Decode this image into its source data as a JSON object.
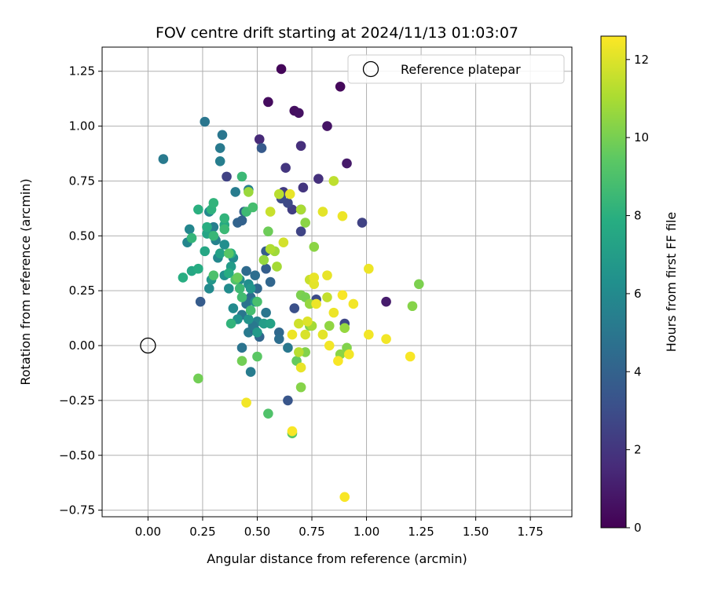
{
  "chart_data": {
    "type": "scatter",
    "title": "FOV centre drift starting at 2024/11/13 01:03:07",
    "xlabel": "Angular distance from reference (arcmin)",
    "ylabel": "Rotation from reference (arcmin)",
    "xlim": [
      -0.21,
      1.94
    ],
    "ylim": [
      -0.78,
      1.36
    ],
    "x_ticks": [
      0.0,
      0.25,
      0.5,
      0.75,
      1.0,
      1.25,
      1.5,
      1.75
    ],
    "x_tick_labels": [
      "0.00",
      "0.25",
      "0.50",
      "0.75",
      "1.00",
      "1.25",
      "1.50",
      "1.75"
    ],
    "y_ticks": [
      -0.75,
      -0.5,
      -0.25,
      0.0,
      0.25,
      0.5,
      0.75,
      1.0,
      1.25
    ],
    "y_tick_labels": [
      "−0.75",
      "−0.50",
      "−0.25",
      "0.00",
      "0.25",
      "0.50",
      "0.75",
      "1.00",
      "1.25"
    ],
    "grid": true,
    "legend": {
      "placement": "upper-right",
      "entries": [
        {
          "label": "Reference platepar",
          "marker": "open-circle",
          "color": "#000000"
        }
      ]
    },
    "reference_point": {
      "x": 0.0,
      "y": 0.0
    },
    "colorbar": {
      "label": "Hours from first FF file",
      "colormap": "viridis",
      "range": [
        0,
        12.6
      ],
      "ticks": [
        0,
        2,
        4,
        6,
        8,
        10,
        12
      ],
      "tick_labels": [
        "0",
        "2",
        "4",
        "6",
        "8",
        "10",
        "12"
      ]
    },
    "points_columns": [
      "x_arcmin",
      "y_arcmin",
      "hours"
    ],
    "points": [
      [
        0.61,
        1.26,
        0.2
      ],
      [
        0.88,
        1.18,
        0.3
      ],
      [
        0.55,
        1.11,
        0.4
      ],
      [
        0.67,
        1.07,
        0.5
      ],
      [
        0.69,
        1.06,
        0.6
      ],
      [
        0.82,
        1.0,
        0.7
      ],
      [
        0.91,
        0.83,
        0.9
      ],
      [
        1.09,
        0.2,
        1.0
      ],
      [
        0.51,
        0.94,
        1.5
      ],
      [
        0.7,
        0.91,
        1.7
      ],
      [
        0.78,
        0.76,
        1.8
      ],
      [
        0.63,
        0.81,
        2.0
      ],
      [
        0.71,
        0.72,
        2.0
      ],
      [
        0.62,
        0.7,
        2.2
      ],
      [
        0.66,
        0.62,
        2.3
      ],
      [
        0.7,
        0.62,
        2.4
      ],
      [
        0.7,
        0.52,
        2.6
      ],
      [
        0.98,
        0.56,
        2.5
      ],
      [
        0.36,
        0.77,
        2.5
      ],
      [
        0.9,
        0.1,
        2.7
      ],
      [
        0.64,
        0.65,
        2.8
      ],
      [
        0.61,
        0.67,
        2.9
      ],
      [
        0.77,
        0.21,
        2.9
      ],
      [
        0.67,
        0.17,
        3.1
      ],
      [
        0.52,
        0.9,
        3.6
      ],
      [
        0.64,
        -0.25,
        3.4
      ],
      [
        0.54,
        0.43,
        3.7
      ],
      [
        0.54,
        0.35,
        3.8
      ],
      [
        0.24,
        0.2,
        3.7
      ],
      [
        0.44,
        0.61,
        3.9
      ],
      [
        0.41,
        0.56,
        4.1
      ],
      [
        0.43,
        0.57,
        4.0
      ],
      [
        0.56,
        0.29,
        4.2
      ],
      [
        0.5,
        0.26,
        4.3
      ],
      [
        0.45,
        0.34,
        4.4
      ],
      [
        0.49,
        0.32,
        4.6
      ],
      [
        0.47,
        0.22,
        4.5
      ],
      [
        0.45,
        0.19,
        4.8
      ],
      [
        0.43,
        0.14,
        5.0
      ],
      [
        0.46,
        0.06,
        5.2
      ],
      [
        0.51,
        0.04,
        4.2
      ],
      [
        0.49,
        0.07,
        4.4
      ],
      [
        0.6,
        0.06,
        4.3
      ],
      [
        0.6,
        0.03,
        4.6
      ],
      [
        0.64,
        -0.01,
        5.1
      ],
      [
        0.43,
        -0.01,
        4.9
      ],
      [
        0.47,
        -0.12,
        5.3
      ],
      [
        0.54,
        0.15,
        5.0
      ],
      [
        0.5,
        0.11,
        5.6
      ],
      [
        0.48,
        0.09,
        5.1
      ],
      [
        0.26,
        1.02,
        5.0
      ],
      [
        0.34,
        0.96,
        5.0
      ],
      [
        0.07,
        0.85,
        5.2
      ],
      [
        0.33,
        0.9,
        5.2
      ],
      [
        0.33,
        0.84,
        5.4
      ],
      [
        0.4,
        0.7,
        5.3
      ],
      [
        0.46,
        0.71,
        5.5
      ],
      [
        0.3,
        0.54,
        5.4
      ],
      [
        0.19,
        0.53,
        5.8
      ],
      [
        0.31,
        0.48,
        5.6
      ],
      [
        0.18,
        0.47,
        5.8
      ],
      [
        0.28,
        0.61,
        5.9
      ],
      [
        0.35,
        0.46,
        6.2
      ],
      [
        0.32,
        0.4,
        5.9
      ],
      [
        0.39,
        0.4,
        6.0
      ],
      [
        0.28,
        0.26,
        6.0
      ],
      [
        0.39,
        0.17,
        6.0
      ],
      [
        0.37,
        0.26,
        6.1
      ],
      [
        0.46,
        0.28,
        6.2
      ],
      [
        0.42,
        0.3,
        6.1
      ],
      [
        0.49,
        0.2,
        6.2
      ],
      [
        0.35,
        0.32,
        6.3
      ],
      [
        0.41,
        0.12,
        6.4
      ],
      [
        0.46,
        0.12,
        6.5
      ],
      [
        0.47,
        0.26,
        6.6
      ],
      [
        0.5,
        0.06,
        6.8
      ],
      [
        0.53,
        0.1,
        7.0
      ],
      [
        0.56,
        0.1,
        7.2
      ],
      [
        0.29,
        0.3,
        6.7
      ],
      [
        0.38,
        0.36,
        6.9
      ],
      [
        0.33,
        0.42,
        7.2
      ],
      [
        0.27,
        0.51,
        7.4
      ],
      [
        0.26,
        0.43,
        7.5
      ],
      [
        0.35,
        0.55,
        7.6
      ],
      [
        0.37,
        0.33,
        7.8
      ],
      [
        0.38,
        0.42,
        7.9
      ],
      [
        0.2,
        0.34,
        7.5
      ],
      [
        0.23,
        0.35,
        7.8
      ],
      [
        0.16,
        0.31,
        7.9
      ],
      [
        0.27,
        0.54,
        7.9
      ],
      [
        0.23,
        0.62,
        8.0
      ],
      [
        0.29,
        0.62,
        8.1
      ],
      [
        0.3,
        0.65,
        8.2
      ],
      [
        0.35,
        0.58,
        8.2
      ],
      [
        0.2,
        0.49,
        8.3
      ],
      [
        0.3,
        0.5,
        8.4
      ],
      [
        0.35,
        0.53,
        8.5
      ],
      [
        0.38,
        0.1,
        8.2
      ],
      [
        0.43,
        0.77,
        8.5
      ],
      [
        0.45,
        0.61,
        8.6
      ],
      [
        0.42,
        0.26,
        8.6
      ],
      [
        0.43,
        0.22,
        8.7
      ],
      [
        0.47,
        0.16,
        8.8
      ],
      [
        0.5,
        0.2,
        8.9
      ],
      [
        0.48,
        0.63,
        8.8
      ],
      [
        0.3,
        0.32,
        9.0
      ],
      [
        0.4,
        0.3,
        9.1
      ],
      [
        0.55,
        -0.31,
        9.1
      ],
      [
        0.37,
        0.42,
        9.3
      ],
      [
        0.5,
        -0.05,
        9.4
      ],
      [
        0.66,
        -0.4,
        9.4
      ],
      [
        0.41,
        0.31,
        9.7
      ],
      [
        0.68,
        -0.07,
        9.6
      ],
      [
        0.23,
        -0.15,
        9.9
      ],
      [
        0.55,
        0.52,
        9.8
      ],
      [
        0.43,
        -0.07,
        9.9
      ],
      [
        0.7,
        0.23,
        10.1
      ],
      [
        0.72,
        0.22,
        10.0
      ],
      [
        0.72,
        -0.03,
        10.2
      ],
      [
        0.74,
        0.09,
        10.1
      ],
      [
        0.7,
        -0.19,
        10.3
      ],
      [
        0.72,
        0.56,
        10.4
      ],
      [
        0.76,
        0.45,
        10.4
      ],
      [
        0.83,
        0.09,
        10.5
      ],
      [
        0.9,
        0.08,
        10.6
      ],
      [
        0.91,
        -0.01,
        10.2
      ],
      [
        0.88,
        -0.04,
        10.4
      ],
      [
        1.21,
        0.18,
        10.3
      ],
      [
        1.24,
        0.28,
        10.1
      ],
      [
        0.74,
        0.19,
        10.6
      ],
      [
        0.46,
        0.7,
        10.7
      ],
      [
        0.53,
        0.39,
        10.6
      ],
      [
        0.58,
        0.43,
        10.8
      ],
      [
        0.59,
        0.36,
        10.9
      ],
      [
        0.75,
        0.09,
        10.9
      ],
      [
        0.7,
        0.62,
        11.0
      ],
      [
        0.56,
        0.44,
        11.1
      ],
      [
        0.6,
        0.69,
        11.3
      ],
      [
        0.82,
        0.22,
        11.5
      ],
      [
        0.74,
        0.3,
        11.6
      ],
      [
        0.85,
        0.75,
        11.4
      ],
      [
        0.69,
        -0.03,
        11.3
      ],
      [
        0.56,
        0.61,
        11.6
      ],
      [
        0.62,
        0.47,
        11.8
      ],
      [
        0.69,
        0.1,
        11.7
      ],
      [
        0.72,
        0.05,
        11.9
      ],
      [
        0.73,
        0.11,
        12.0
      ],
      [
        0.76,
        0.28,
        12.1
      ],
      [
        0.76,
        0.31,
        12.2
      ],
      [
        0.77,
        0.19,
        12.3
      ],
      [
        0.8,
        0.61,
        12.1
      ],
      [
        0.82,
        0.32,
        12.2
      ],
      [
        0.85,
        0.15,
        12.3
      ],
      [
        0.83,
        0.0,
        12.4
      ],
      [
        0.87,
        -0.07,
        12.5
      ],
      [
        0.92,
        -0.04,
        12.4
      ],
      [
        0.89,
        0.59,
        12.3
      ],
      [
        0.89,
        0.23,
        12.5
      ],
      [
        0.94,
        0.19,
        12.4
      ],
      [
        1.01,
        0.35,
        12.3
      ],
      [
        1.01,
        0.05,
        12.4
      ],
      [
        1.09,
        0.03,
        12.4
      ],
      [
        1.2,
        -0.05,
        12.5
      ],
      [
        0.9,
        -0.69,
        12.5
      ],
      [
        0.66,
        -0.39,
        12.5
      ],
      [
        0.45,
        -0.26,
        12.4
      ],
      [
        0.7,
        -0.1,
        12.2
      ],
      [
        0.66,
        0.05,
        12.3
      ],
      [
        0.8,
        0.05,
        12.1
      ],
      [
        0.65,
        0.69,
        12.2
      ]
    ]
  }
}
